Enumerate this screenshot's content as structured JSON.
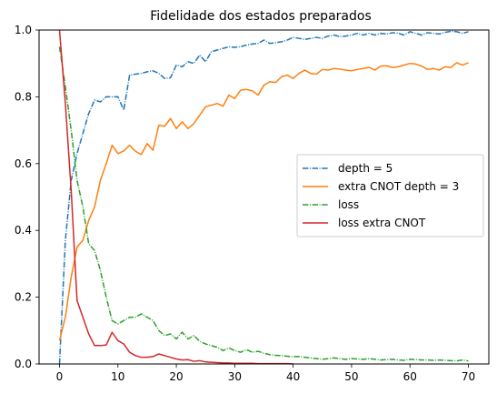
{
  "chart_data": {
    "type": "line",
    "title": "Fidelidade dos estados preparados",
    "xlabel": "",
    "ylabel": "",
    "xlim": [
      -3.5,
      73.5
    ],
    "ylim": [
      0,
      1.0
    ],
    "x_ticks": [
      0,
      10,
      20,
      30,
      40,
      50,
      60,
      70
    ],
    "y_ticks": [
      0.0,
      0.2,
      0.4,
      0.6,
      0.8,
      1.0
    ],
    "x_tick_labels": [
      "0",
      "10",
      "20",
      "30",
      "40",
      "50",
      "60",
      "70"
    ],
    "y_tick_labels": [
      "0.0",
      "0.2",
      "0.4",
      "0.6",
      "0.8",
      "1.0"
    ],
    "grid": false,
    "legend_position": "center-right",
    "series": [
      {
        "name": "depth = 5",
        "color": "#1f77b4",
        "style": "dashdot",
        "x": [
          0,
          1,
          2,
          3,
          4,
          5,
          6,
          7,
          8,
          9,
          10,
          11,
          12,
          13,
          14,
          15,
          16,
          17,
          18,
          19,
          20,
          21,
          22,
          23,
          24,
          25,
          26,
          27,
          28,
          29,
          30,
          31,
          32,
          33,
          34,
          35,
          36,
          37,
          38,
          39,
          40,
          41,
          42,
          43,
          44,
          45,
          46,
          47,
          48,
          49,
          50,
          51,
          52,
          53,
          54,
          55,
          56,
          57,
          58,
          59,
          60,
          61,
          62,
          63,
          64,
          65,
          66,
          67,
          68,
          69,
          70
        ],
        "y": [
          0.0,
          0.37,
          0.55,
          0.63,
          0.69,
          0.75,
          0.79,
          0.785,
          0.8,
          0.8,
          0.8,
          0.76,
          0.865,
          0.868,
          0.87,
          0.875,
          0.878,
          0.87,
          0.855,
          0.857,
          0.895,
          0.89,
          0.905,
          0.9,
          0.925,
          0.905,
          0.935,
          0.94,
          0.945,
          0.95,
          0.948,
          0.95,
          0.955,
          0.958,
          0.96,
          0.97,
          0.96,
          0.962,
          0.965,
          0.97,
          0.978,
          0.975,
          0.972,
          0.975,
          0.978,
          0.975,
          0.982,
          0.985,
          0.98,
          0.982,
          0.985,
          0.99,
          0.985,
          0.99,
          0.985,
          0.99,
          0.988,
          0.992,
          0.99,
          0.985,
          0.995,
          0.99,
          0.985,
          0.992,
          0.99,
          0.988,
          0.993,
          0.996,
          0.995,
          0.99,
          0.995
        ]
      },
      {
        "name": "extra CNOT depth = 3",
        "color": "#ff7f0e",
        "style": "solid",
        "x": [
          0,
          1,
          2,
          3,
          4,
          5,
          6,
          7,
          8,
          9,
          10,
          11,
          12,
          13,
          14,
          15,
          16,
          17,
          18,
          19,
          20,
          21,
          22,
          23,
          24,
          25,
          26,
          27,
          28,
          29,
          30,
          31,
          32,
          33,
          34,
          35,
          36,
          37,
          38,
          39,
          40,
          41,
          42,
          43,
          44,
          45,
          46,
          47,
          48,
          49,
          50,
          51,
          52,
          53,
          54,
          55,
          56,
          57,
          58,
          59,
          60,
          61,
          62,
          63,
          64,
          65,
          66,
          67,
          68,
          69,
          70
        ],
        "y": [
          0.07,
          0.14,
          0.26,
          0.35,
          0.37,
          0.43,
          0.47,
          0.55,
          0.6,
          0.655,
          0.63,
          0.638,
          0.655,
          0.637,
          0.627,
          0.66,
          0.64,
          0.715,
          0.712,
          0.735,
          0.705,
          0.725,
          0.705,
          0.72,
          0.745,
          0.77,
          0.775,
          0.78,
          0.772,
          0.805,
          0.795,
          0.82,
          0.822,
          0.818,
          0.805,
          0.835,
          0.845,
          0.843,
          0.86,
          0.865,
          0.855,
          0.87,
          0.88,
          0.87,
          0.868,
          0.882,
          0.88,
          0.885,
          0.883,
          0.88,
          0.878,
          0.882,
          0.885,
          0.888,
          0.88,
          0.892,
          0.893,
          0.888,
          0.89,
          0.895,
          0.9,
          0.898,
          0.892,
          0.882,
          0.885,
          0.88,
          0.89,
          0.888,
          0.902,
          0.895,
          0.902
        ]
      },
      {
        "name": "loss",
        "color": "#2ca02c",
        "style": "dashdot",
        "x": [
          0,
          1,
          2,
          3,
          4,
          5,
          6,
          7,
          8,
          9,
          10,
          11,
          12,
          13,
          14,
          15,
          16,
          17,
          18,
          19,
          20,
          21,
          22,
          23,
          24,
          25,
          26,
          27,
          28,
          29,
          30,
          31,
          32,
          33,
          34,
          35,
          36,
          37,
          38,
          39,
          40,
          41,
          42,
          43,
          44,
          45,
          46,
          47,
          48,
          49,
          50,
          51,
          52,
          53,
          54,
          55,
          56,
          57,
          58,
          59,
          60,
          61,
          62,
          63,
          64,
          65,
          66,
          67,
          68,
          69,
          70
        ],
        "y": [
          0.95,
          0.83,
          0.7,
          0.55,
          0.47,
          0.36,
          0.34,
          0.28,
          0.2,
          0.13,
          0.12,
          0.13,
          0.14,
          0.14,
          0.15,
          0.14,
          0.13,
          0.1,
          0.085,
          0.09,
          0.075,
          0.095,
          0.075,
          0.085,
          0.068,
          0.06,
          0.055,
          0.05,
          0.04,
          0.048,
          0.04,
          0.035,
          0.043,
          0.035,
          0.038,
          0.032,
          0.028,
          0.026,
          0.025,
          0.023,
          0.022,
          0.022,
          0.02,
          0.018,
          0.016,
          0.014,
          0.016,
          0.018,
          0.016,
          0.014,
          0.016,
          0.015,
          0.014,
          0.016,
          0.014,
          0.012,
          0.013,
          0.014,
          0.012,
          0.011,
          0.014,
          0.013,
          0.012,
          0.012,
          0.011,
          0.012,
          0.011,
          0.01,
          0.009,
          0.012,
          0.009
        ]
      },
      {
        "name": "loss extra CNOT",
        "color": "#d62728",
        "style": "solid",
        "x": [
          0,
          1,
          2,
          3,
          4,
          5,
          6,
          7,
          8,
          9,
          10,
          11,
          12,
          13,
          14,
          15,
          16,
          17,
          18,
          19,
          20,
          21,
          22,
          23,
          24,
          25,
          26,
          27,
          28,
          29,
          30,
          31,
          32,
          33,
          34,
          35,
          36,
          37,
          38,
          39,
          40
        ],
        "y": [
          1.0,
          0.78,
          0.52,
          0.19,
          0.14,
          0.09,
          0.055,
          0.055,
          0.057,
          0.095,
          0.07,
          0.06,
          0.035,
          0.025,
          0.02,
          0.02,
          0.022,
          0.03,
          0.025,
          0.02,
          0.015,
          0.012,
          0.013,
          0.008,
          0.01,
          0.006,
          0.005,
          0.004,
          0.003,
          0.003,
          0.002,
          0.002,
          0.002,
          0.002,
          0.001,
          0.001,
          0.001,
          0.001,
          0.001,
          0.001,
          0.0
        ]
      }
    ]
  }
}
